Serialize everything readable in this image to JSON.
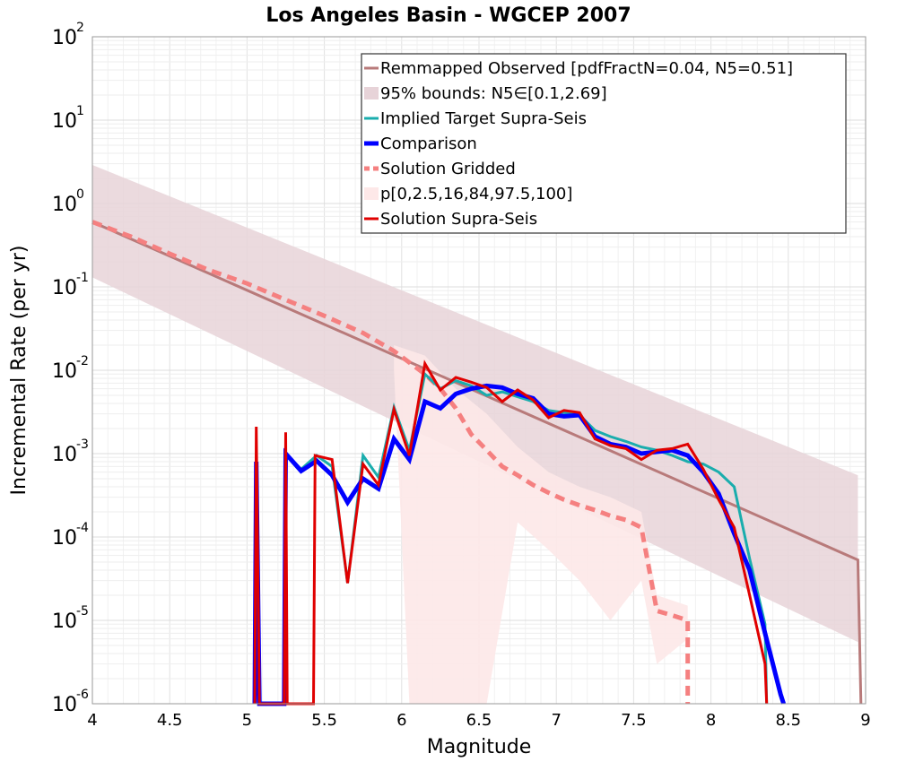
{
  "chart_data": {
    "type": "line",
    "title": "Los Angeles Basin - WGCEP 2007",
    "xlabel": "Magnitude",
    "ylabel": "Incremental Rate (per yr)",
    "xlim": [
      4,
      9
    ],
    "ylim": [
      1e-06,
      100
    ],
    "y_scale": "log",
    "grid": true,
    "legend_position": "top-right",
    "x_ticks": [
      "4",
      "4.5",
      "5",
      "5.5",
      "6",
      "6.5",
      "7",
      "7.5",
      "8",
      "8.5",
      "9"
    ],
    "y_ticks": [
      {
        "base": "10",
        "exp": "-6"
      },
      {
        "base": "10",
        "exp": "-5"
      },
      {
        "base": "10",
        "exp": "-4"
      },
      {
        "base": "10",
        "exp": "-3"
      },
      {
        "base": "10",
        "exp": "-2"
      },
      {
        "base": "10",
        "exp": "-1"
      },
      {
        "base": "10",
        "exp": "0"
      },
      {
        "base": "10",
        "exp": "1"
      },
      {
        "base": "10",
        "exp": "2"
      }
    ],
    "legend": [
      {
        "label": "Remmapped Observed [pdfFractN=0.04, N5=0.51]",
        "style": "line",
        "color": "#b87a7a"
      },
      {
        "label": "95% bounds: N5∈[0.1,2.69]",
        "style": "band",
        "color": "#e7d3d8"
      },
      {
        "label": "Implied Target Supra-Seis",
        "style": "line",
        "color": "#1aadad"
      },
      {
        "label": "Comparison",
        "style": "thick-line",
        "color": "#0000ff"
      },
      {
        "label": "Solution Gridded",
        "style": "dashed",
        "color": "#f58080"
      },
      {
        "label": "p[0,2.5,16,84,97.5,100]",
        "style": "band",
        "color": "#fde8e8"
      },
      {
        "label": "Solution Supra-Seis",
        "style": "line",
        "color": "#e00000"
      }
    ],
    "series": [
      {
        "key": "observed",
        "color": "#b87a7a",
        "points": [
          [
            4.0,
            0.6
          ],
          [
            8.95,
            5.3e-05
          ],
          [
            8.97,
            1e-06
          ]
        ]
      },
      {
        "key": "bounds_95",
        "color": "#e7d3d8",
        "upper": [
          [
            4.0,
            2.9
          ],
          [
            8.95,
            0.00055
          ]
        ],
        "lower": [
          [
            4.0,
            0.13
          ],
          [
            8.95,
            5.5e-06
          ]
        ]
      },
      {
        "key": "target",
        "color": "#1aadad",
        "points": [
          [
            5.05,
            1e-06
          ],
          [
            5.06,
            0.0008
          ],
          [
            5.08,
            1e-06
          ],
          [
            5.24,
            1e-06
          ],
          [
            5.25,
            0.001
          ],
          [
            5.35,
            0.00065
          ],
          [
            5.45,
            0.00095
          ],
          [
            5.55,
            0.0007
          ],
          [
            5.65,
            2.8e-05
          ],
          [
            5.75,
            0.00095
          ],
          [
            5.85,
            0.00052
          ],
          [
            5.95,
            0.0036
          ],
          [
            6.05,
            0.0011
          ],
          [
            6.15,
            0.009
          ],
          [
            6.25,
            0.006
          ],
          [
            6.35,
            0.0075
          ],
          [
            6.45,
            0.0065
          ],
          [
            6.55,
            0.005
          ],
          [
            6.65,
            0.0055
          ],
          [
            6.75,
            0.0048
          ],
          [
            6.85,
            0.0042
          ],
          [
            6.95,
            0.0033
          ],
          [
            7.05,
            0.0031
          ],
          [
            7.15,
            0.0029
          ],
          [
            7.25,
            0.0019
          ],
          [
            7.35,
            0.0016
          ],
          [
            7.45,
            0.0014
          ],
          [
            7.55,
            0.0012
          ],
          [
            7.65,
            0.0011
          ],
          [
            7.75,
            0.00095
          ],
          [
            7.85,
            0.0008
          ],
          [
            7.95,
            0.00075
          ],
          [
            8.05,
            0.0006
          ],
          [
            8.15,
            0.0004
          ],
          [
            8.25,
            5.5e-05
          ],
          [
            8.35,
            9e-06
          ],
          [
            8.36,
            1e-06
          ]
        ]
      },
      {
        "key": "comparison",
        "color": "#0000ff",
        "points": [
          [
            5.05,
            1e-06
          ],
          [
            5.06,
            0.0008
          ],
          [
            5.08,
            1e-06
          ],
          [
            5.24,
            1e-06
          ],
          [
            5.25,
            0.001
          ],
          [
            5.35,
            0.00062
          ],
          [
            5.45,
            0.00082
          ],
          [
            5.55,
            0.00055
          ],
          [
            5.65,
            0.00026
          ],
          [
            5.75,
            0.0005
          ],
          [
            5.85,
            0.00038
          ],
          [
            5.95,
            0.0015
          ],
          [
            6.05,
            0.00085
          ],
          [
            6.15,
            0.0042
          ],
          [
            6.25,
            0.0035
          ],
          [
            6.35,
            0.0052
          ],
          [
            6.45,
            0.006
          ],
          [
            6.55,
            0.0065
          ],
          [
            6.65,
            0.0062
          ],
          [
            6.75,
            0.0052
          ],
          [
            6.85,
            0.0046
          ],
          [
            6.95,
            0.003
          ],
          [
            7.05,
            0.0028
          ],
          [
            7.15,
            0.0029
          ],
          [
            7.25,
            0.0016
          ],
          [
            7.35,
            0.0013
          ],
          [
            7.45,
            0.0012
          ],
          [
            7.55,
            0.001
          ],
          [
            7.65,
            0.00105
          ],
          [
            7.75,
            0.0011
          ],
          [
            7.85,
            0.00095
          ],
          [
            7.95,
            0.0006
          ],
          [
            8.05,
            0.00033
          ],
          [
            8.15,
            0.00011
          ],
          [
            8.25,
            4e-05
          ],
          [
            8.35,
            7e-06
          ],
          [
            8.45,
            1.3e-06
          ],
          [
            8.47,
            1e-06
          ]
        ]
      },
      {
        "key": "gridded",
        "color": "#f58080",
        "points": [
          [
            4.0,
            0.6
          ],
          [
            4.25,
            0.4
          ],
          [
            4.5,
            0.25
          ],
          [
            4.75,
            0.16
          ],
          [
            5.0,
            0.11
          ],
          [
            5.25,
            0.07
          ],
          [
            5.5,
            0.045
          ],
          [
            5.75,
            0.028
          ],
          [
            5.95,
            0.017
          ],
          [
            6.15,
            0.009
          ],
          [
            6.25,
            0.006
          ],
          [
            6.35,
            0.0035
          ],
          [
            6.45,
            0.0017
          ],
          [
            6.55,
            0.0011
          ],
          [
            6.65,
            0.0007
          ],
          [
            6.75,
            0.00055
          ],
          [
            6.85,
            0.00042
          ],
          [
            6.95,
            0.00034
          ],
          [
            7.05,
            0.00028
          ],
          [
            7.15,
            0.00024
          ],
          [
            7.25,
            0.00021
          ],
          [
            7.35,
            0.00018
          ],
          [
            7.45,
            0.00016
          ],
          [
            7.55,
            0.00013
          ],
          [
            7.65,
            1.3e-05
          ],
          [
            7.75,
            1.15e-05
          ],
          [
            7.85,
            1e-05
          ],
          [
            7.85,
            1e-06
          ]
        ]
      },
      {
        "key": "percentiles",
        "color": "#fde8e8",
        "upper": [
          [
            5.95,
            0.02
          ],
          [
            6.15,
            0.015
          ],
          [
            6.35,
            0.006
          ],
          [
            6.55,
            0.003
          ],
          [
            6.75,
            0.0012
          ],
          [
            6.95,
            0.0006
          ],
          [
            7.15,
            0.0004
          ],
          [
            7.35,
            0.0003
          ],
          [
            7.55,
            0.0002
          ],
          [
            7.65,
            2e-05
          ],
          [
            7.85,
            1.5e-05
          ]
        ],
        "lower": [
          [
            5.95,
            0.01
          ],
          [
            6.05,
            1e-06
          ],
          [
            6.55,
            1e-06
          ],
          [
            6.75,
            0.00015
          ],
          [
            6.95,
            7e-05
          ],
          [
            7.15,
            3e-05
          ],
          [
            7.35,
            1e-05
          ],
          [
            7.55,
            3e-05
          ],
          [
            7.65,
            3e-06
          ],
          [
            7.85,
            6e-06
          ]
        ]
      },
      {
        "key": "supra",
        "color": "#e00000",
        "points": [
          [
            5.05,
            1e-06
          ],
          [
            5.06,
            0.0021
          ],
          [
            5.08,
            1e-06
          ],
          [
            5.24,
            1e-06
          ],
          [
            5.25,
            0.0018
          ],
          [
            5.26,
            1e-06
          ],
          [
            5.43,
            1e-06
          ],
          [
            5.44,
            0.00095
          ],
          [
            5.55,
            0.00085
          ],
          [
            5.65,
            2.8e-05
          ],
          [
            5.75,
            0.00075
          ],
          [
            5.85,
            0.00042
          ],
          [
            5.95,
            0.0034
          ],
          [
            6.05,
            0.00095
          ],
          [
            6.15,
            0.012
          ],
          [
            6.25,
            0.0058
          ],
          [
            6.35,
            0.0082
          ],
          [
            6.45,
            0.0072
          ],
          [
            6.55,
            0.0062
          ],
          [
            6.65,
            0.0042
          ],
          [
            6.75,
            0.0058
          ],
          [
            6.85,
            0.0044
          ],
          [
            6.95,
            0.0027
          ],
          [
            7.05,
            0.0033
          ],
          [
            7.15,
            0.0031
          ],
          [
            7.25,
            0.0015
          ],
          [
            7.35,
            0.00125
          ],
          [
            7.45,
            0.00115
          ],
          [
            7.55,
            0.00085
          ],
          [
            7.65,
            0.0011
          ],
          [
            7.75,
            0.00115
          ],
          [
            7.85,
            0.0013
          ],
          [
            7.95,
            0.00065
          ],
          [
            8.05,
            0.00028
          ],
          [
            8.15,
            0.00013
          ],
          [
            8.25,
            2e-05
          ],
          [
            8.35,
            3e-06
          ],
          [
            8.36,
            1e-06
          ]
        ]
      }
    ]
  }
}
